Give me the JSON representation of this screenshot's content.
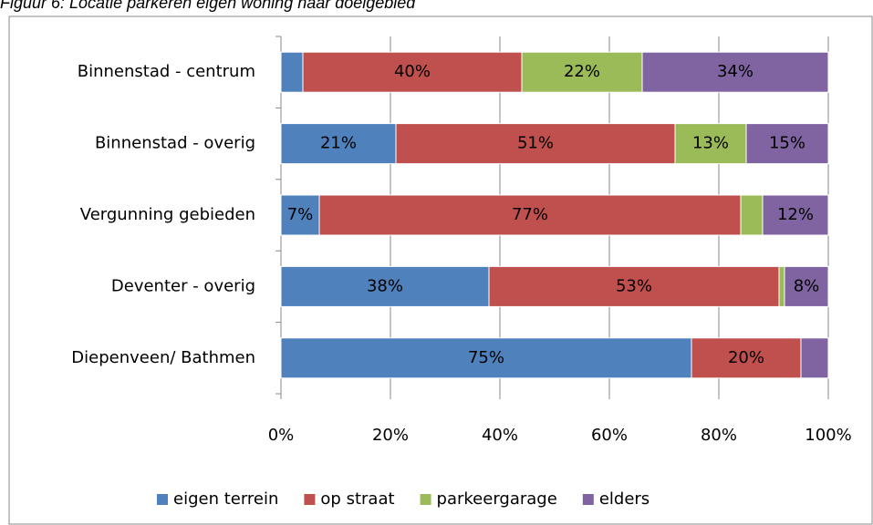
{
  "chart_data": {
    "type": "stacked_barh",
    "title": "Figuur 6: Locatie parkeren eigen woning naar doelgebied",
    "categories": [
      "Binnenstad - centrum",
      "Binnenstad - overig",
      "Vergunning gebieden",
      "Deventer - overig",
      "Diepenveen/ Bathmen"
    ],
    "series": [
      {
        "name": "eigen terrein",
        "color": "#4f81bd",
        "values": [
          4,
          21,
          7,
          38,
          75
        ],
        "value_labels": [
          null,
          "21%",
          "7%",
          "38%",
          "75%"
        ]
      },
      {
        "name": "op straat",
        "color": "#c0504d",
        "values": [
          40,
          51,
          77,
          53,
          20
        ],
        "value_labels": [
          "40%",
          "51%",
          "77%",
          "53%",
          "20%"
        ]
      },
      {
        "name": "parkeergarage",
        "color": "#9bbb59",
        "values": [
          22,
          13,
          4,
          1,
          0
        ],
        "value_labels": [
          "22%",
          "13%",
          null,
          null,
          null
        ]
      },
      {
        "name": "elders",
        "color": "#8064a2",
        "values": [
          34,
          15,
          12,
          8,
          5
        ],
        "value_labels": [
          "34%",
          "15%",
          "12%",
          "8%",
          null
        ]
      }
    ],
    "xlim": [
      0,
      100
    ],
    "xticks": [
      {
        "value": 0,
        "label": "0%"
      },
      {
        "value": 20,
        "label": "20%"
      },
      {
        "value": 40,
        "label": "40%"
      },
      {
        "value": 60,
        "label": "60%"
      },
      {
        "value": 80,
        "label": "80%"
      },
      {
        "value": 100,
        "label": "100%"
      }
    ],
    "grid": true,
    "legend": "bottom"
  }
}
